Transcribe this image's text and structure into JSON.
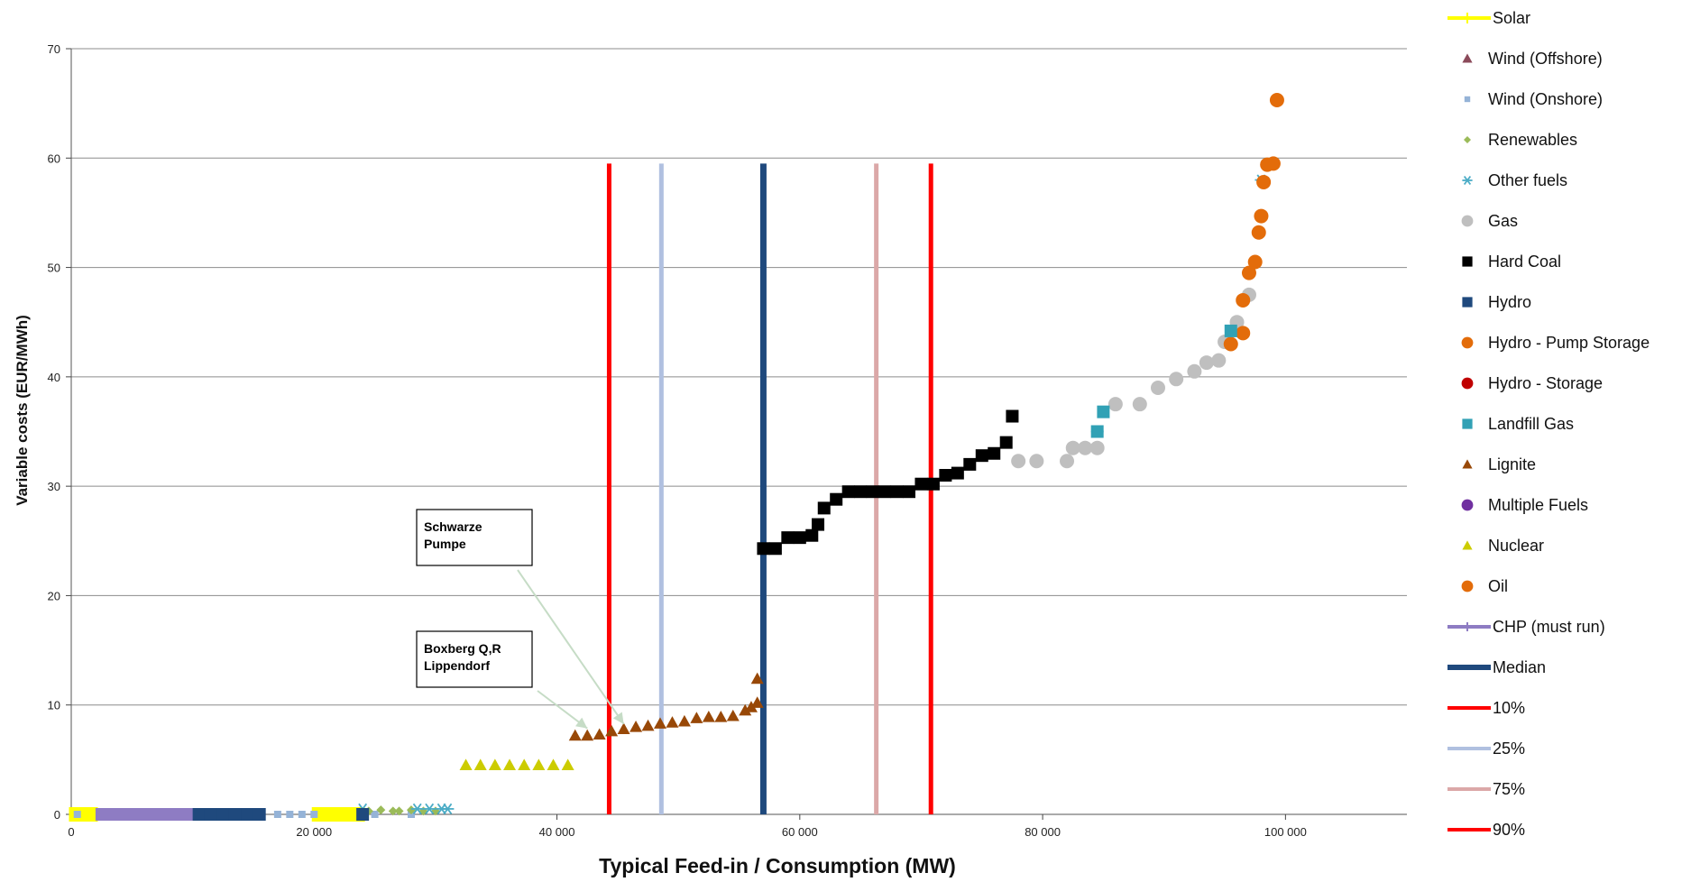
{
  "chart_data": {
    "type": "scatter",
    "title": "",
    "xlabel": "Typical Feed-in / Consumption (MW)",
    "ylabel": "Variable costs (EUR/MWh)",
    "xlim": [
      0,
      110000
    ],
    "ylim": [
      0,
      70
    ],
    "x_ticks": [
      0,
      20000,
      40000,
      60000,
      80000,
      100000
    ],
    "x_tick_labels": [
      "0",
      "20 000",
      "40 000",
      "60 000",
      "80 000",
      "100 000"
    ],
    "y_ticks": [
      0,
      10,
      20,
      30,
      40,
      50,
      60,
      70
    ],
    "y_tick_labels": [
      "0",
      "10",
      "20",
      "30",
      "40",
      "50",
      "60",
      "70"
    ],
    "grid": "horizontal",
    "legend_position": "right",
    "series": [
      {
        "name": "Solar",
        "marker": "line-star",
        "color": "#FFFF00",
        "x": [
          1000,
          21000,
          22000,
          23000
        ],
        "y": [
          0,
          0,
          0,
          0
        ]
      },
      {
        "name": "Wind (Offshore)",
        "marker": "triangle",
        "color": "#8B4A5A",
        "x": [],
        "y": []
      },
      {
        "name": "Wind (Onshore)",
        "marker": "small-square",
        "color": "#95B3D7",
        "x": [
          500,
          17000,
          18000,
          19000,
          20000,
          25000,
          28000
        ],
        "y": [
          0,
          0,
          0,
          0,
          0,
          0,
          0
        ]
      },
      {
        "name": "Renewables",
        "marker": "diamond",
        "color": "#9BBB59",
        "x": [
          24500,
          25500,
          26500,
          27000,
          28000,
          29000,
          30000
        ],
        "y": [
          0.3,
          0.4,
          0.3,
          0.3,
          0.4,
          0.3,
          0.3
        ]
      },
      {
        "name": "Other fuels",
        "marker": "asterisk",
        "color": "#4BACC6",
        "x": [
          24000,
          28500,
          29500,
          30500,
          31000,
          84500,
          98000
        ],
        "y": [
          0.5,
          0.5,
          0.5,
          0.5,
          0.5,
          35,
          58
        ]
      },
      {
        "name": "Gas",
        "marker": "circle",
        "color": "#BFBFBF",
        "x": [
          78000,
          79500,
          82000,
          82500,
          83500,
          84500,
          86000,
          88000,
          89500,
          91000,
          92500,
          93500,
          94500,
          95000,
          96000,
          97000
        ],
        "y": [
          32.3,
          32.3,
          32.3,
          33.5,
          33.5,
          33.5,
          37.5,
          37.5,
          39,
          39.8,
          40.5,
          41.3,
          41.5,
          43.2,
          45,
          47.5
        ]
      },
      {
        "name": "Hard Coal",
        "marker": "square",
        "color": "#000000",
        "x": [
          57000,
          58000,
          59000,
          60000,
          61000,
          61500,
          62000,
          63000,
          64000,
          65000,
          66000,
          67000,
          68000,
          69000,
          70000,
          71000,
          72000,
          73000,
          74000,
          75000,
          76000,
          77000,
          77500
        ],
        "y": [
          24.3,
          24.3,
          25.3,
          25.3,
          25.5,
          26.5,
          28,
          28.8,
          29.5,
          29.5,
          29.5,
          29.5,
          29.5,
          29.5,
          30.2,
          30.2,
          31,
          31.2,
          32,
          32.8,
          33,
          34,
          36.4
        ]
      },
      {
        "name": "Hydro",
        "marker": "square",
        "color": "#1F497D",
        "x": [
          10500,
          11500,
          12500,
          13500,
          14500,
          15500,
          24000
        ],
        "y": [
          0,
          0,
          0,
          0,
          0,
          0,
          0
        ]
      },
      {
        "name": "Hydro - Pump Storage",
        "marker": "circle",
        "color": "#E36C0A",
        "x": [
          95500,
          96500,
          96500,
          97000,
          97500,
          97800,
          98000,
          98200,
          98500,
          99000,
          99300
        ],
        "y": [
          43,
          44,
          47,
          49.5,
          50.5,
          53.2,
          54.7,
          57.8,
          59.4,
          59.5,
          65.3
        ]
      },
      {
        "name": "Hydro - Storage",
        "marker": "circle",
        "color": "#C00000",
        "x": [],
        "y": []
      },
      {
        "name": "Landfill Gas",
        "marker": "square",
        "color": "#31A1B5",
        "x": [
          84500,
          85000,
          95500
        ],
        "y": [
          35,
          36.8,
          44.2
        ]
      },
      {
        "name": "Lignite",
        "marker": "triangle",
        "color": "#984807",
        "x": [
          41500,
          42500,
          43500,
          44500,
          45500,
          46500,
          47500,
          48500,
          49500,
          50500,
          51500,
          52500,
          53500,
          54500,
          55500,
          56000,
          56500,
          56500
        ],
        "y": [
          7.2,
          7.2,
          7.3,
          7.6,
          7.8,
          8,
          8.1,
          8.3,
          8.4,
          8.5,
          8.8,
          8.9,
          8.9,
          9,
          9.5,
          9.8,
          10.2,
          12.4
        ]
      },
      {
        "name": "Multiple Fuels",
        "marker": "circle",
        "color": "#7030A0",
        "x": [],
        "y": []
      },
      {
        "name": "Nuclear",
        "marker": "triangle",
        "color": "#CCCC00",
        "x": [
          32500,
          33700,
          34900,
          36100,
          37300,
          38500,
          39700,
          40900
        ],
        "y": [
          4.5,
          4.5,
          4.5,
          4.5,
          4.5,
          4.5,
          4.5,
          4.5
        ]
      },
      {
        "name": "Oil",
        "marker": "circle",
        "color": "#E36C0A",
        "x": [],
        "y": []
      },
      {
        "name": "CHP (must run)",
        "marker": "line",
        "color": "#8E7CC3",
        "x": [
          2000,
          10000
        ],
        "y": [
          0,
          0
        ]
      },
      {
        "name": "Median",
        "marker": "vline",
        "color": "#1F497D",
        "x": [
          57000
        ],
        "y": [
          59.5
        ]
      },
      {
        "name": "10%",
        "marker": "vline",
        "color": "#FF0000",
        "x": [
          44300
        ],
        "y": [
          59.5
        ]
      },
      {
        "name": "25%",
        "marker": "vline",
        "color": "#B0C0E0",
        "x": [
          48600
        ],
        "y": [
          59.5
        ]
      },
      {
        "name": "75%",
        "marker": "vline",
        "color": "#DBA8A8",
        "x": [
          66300
        ],
        "y": [
          59.5
        ]
      },
      {
        "name": "90%",
        "marker": "vline",
        "color": "#FF0000",
        "x": [
          70800
        ],
        "y": [
          59.5
        ]
      }
    ],
    "annotations": [
      {
        "id": "schwarze-pumpe",
        "lines": [
          "Schwarze",
          "Pumpe"
        ],
        "arrow_to": [
          45500,
          7.6
        ]
      },
      {
        "id": "boxberg",
        "lines": [
          "Boxberg Q,R",
          "Lippendorf"
        ],
        "arrow_to": [
          42500,
          7.2
        ]
      }
    ]
  }
}
